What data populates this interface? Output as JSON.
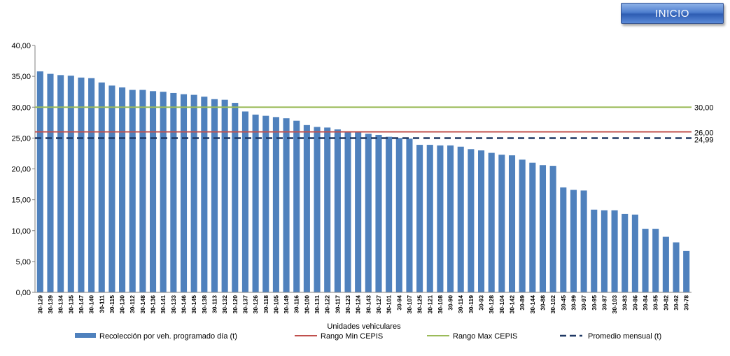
{
  "button": {
    "label": "INICIO"
  },
  "chart_data": {
    "type": "bar",
    "xlabel": "Unidades vehiculares",
    "ylabel": "",
    "ylim": [
      0,
      40
    ],
    "y_ticks": [
      "0,00",
      "5,00",
      "10,00",
      "15,00",
      "20,00",
      "25,00",
      "30,00",
      "35,00",
      "40,00"
    ],
    "grid": false,
    "legend_position": "bottom",
    "categories": [
      "30-129",
      "30-139",
      "30-134",
      "30-135",
      "30-147",
      "30-140",
      "30-111",
      "30-115",
      "30-130",
      "30-112",
      "30-148",
      "30-136",
      "30-141",
      "30-133",
      "30-146",
      "30-145",
      "30-138",
      "30-113",
      "30-132",
      "30-120",
      "30-137",
      "30-126",
      "30-118",
      "30-105",
      "30-149",
      "30-116",
      "30-100",
      "30-131",
      "30-122",
      "30-117",
      "30-123",
      "30-124",
      "30-143",
      "30-127",
      "30-101",
      "30-94",
      "30-107",
      "30-125",
      "30-121",
      "30-108",
      "30-90",
      "30-114",
      "30-119",
      "30-93",
      "30-128",
      "30-104",
      "30-142",
      "30-89",
      "30-144",
      "30-88",
      "30-102",
      "30-45",
      "30-99",
      "30-97",
      "30-95",
      "30-87",
      "30-103",
      "30-83",
      "30-86",
      "30-84",
      "30-55",
      "30-82",
      "30-92",
      "30-78"
    ],
    "series": [
      {
        "name": "Recolección por veh. programado día (t)",
        "color": "#4f81bd",
        "values": [
          35.8,
          35.4,
          35.2,
          35.1,
          34.8,
          34.7,
          34.0,
          33.5,
          33.2,
          32.8,
          32.8,
          32.6,
          32.5,
          32.3,
          32.1,
          32.0,
          31.7,
          31.3,
          31.2,
          30.7,
          29.3,
          28.8,
          28.6,
          28.4,
          28.2,
          27.8,
          27.1,
          26.8,
          26.7,
          26.4,
          26.1,
          25.9,
          25.7,
          25.5,
          25.2,
          25.0,
          24.9,
          23.9,
          23.9,
          23.8,
          23.8,
          23.6,
          23.2,
          23.0,
          22.6,
          22.3,
          22.2,
          21.5,
          21.0,
          20.6,
          20.5,
          17.0,
          16.6,
          16.5,
          13.4,
          13.3,
          13.3,
          12.7,
          12.6,
          10.3,
          10.3,
          9.0,
          8.1,
          6.7
        ]
      }
    ],
    "reference_lines": [
      {
        "name": "Rango Min CEPIS",
        "value": 26.0,
        "label": "26,00",
        "color": "#c0504d",
        "style": "solid"
      },
      {
        "name": "Rango Max CEPIS",
        "value": 30.0,
        "label": "30,00",
        "color": "#9bbb59",
        "style": "solid"
      },
      {
        "name": "Promedio mensual (t)",
        "value": 24.99,
        "label": "24,99",
        "color": "#1f3864",
        "style": "dashed"
      }
    ]
  }
}
